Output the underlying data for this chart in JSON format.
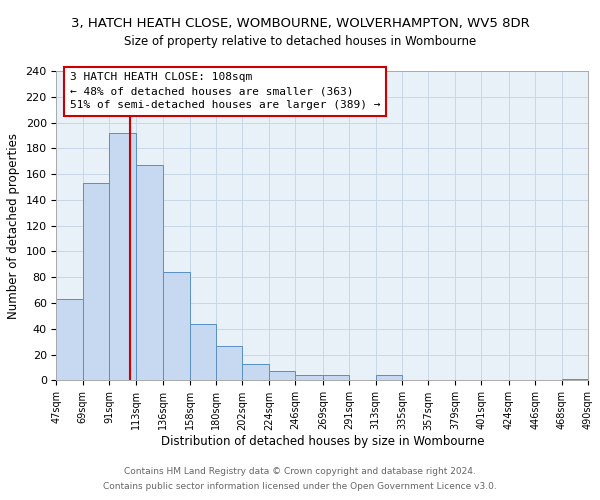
{
  "title_line1": "3, HATCH HEATH CLOSE, WOMBOURNE, WOLVERHAMPTON, WV5 8DR",
  "title_line2": "Size of property relative to detached houses in Wombourne",
  "xlabel": "Distribution of detached houses by size in Wombourne",
  "ylabel": "Number of detached properties",
  "bar_left_edges": [
    47,
    69,
    91,
    113,
    136,
    158,
    180,
    202,
    224,
    246,
    269,
    291,
    313,
    335,
    357,
    379,
    401,
    424,
    446,
    468
  ],
  "bar_heights": [
    63,
    153,
    192,
    167,
    84,
    44,
    27,
    13,
    7,
    4,
    4,
    0,
    4,
    0,
    0,
    0,
    0,
    0,
    0,
    1
  ],
  "bar_widths": [
    22,
    22,
    22,
    23,
    22,
    22,
    22,
    22,
    22,
    23,
    22,
    22,
    22,
    22,
    22,
    22,
    23,
    22,
    22,
    22
  ],
  "bar_color": "#c6d9f0",
  "bar_edge_color": "#5a8fc3",
  "property_line_x": 108,
  "annotation_box_text": "3 HATCH HEATH CLOSE: 108sqm\n← 48% of detached houses are smaller (363)\n51% of semi-detached houses are larger (389) →",
  "vline_color": "#cc0000",
  "annotation_box_edge_color": "#cc0000",
  "xlim": [
    47,
    490
  ],
  "ylim": [
    0,
    240
  ],
  "yticks": [
    0,
    20,
    40,
    60,
    80,
    100,
    120,
    140,
    160,
    180,
    200,
    220,
    240
  ],
  "xtick_labels": [
    "47sqm",
    "69sqm",
    "91sqm",
    "113sqm",
    "136sqm",
    "158sqm",
    "180sqm",
    "202sqm",
    "224sqm",
    "246sqm",
    "269sqm",
    "291sqm",
    "313sqm",
    "335sqm",
    "357sqm",
    "379sqm",
    "401sqm",
    "424sqm",
    "446sqm",
    "468sqm",
    "490sqm"
  ],
  "xtick_positions": [
    47,
    69,
    91,
    113,
    136,
    158,
    180,
    202,
    224,
    246,
    269,
    291,
    313,
    335,
    357,
    379,
    401,
    424,
    446,
    468,
    490
  ],
  "grid_color": "#c8d8e8",
  "footer_line1": "Contains HM Land Registry data © Crown copyright and database right 2024.",
  "footer_line2": "Contains public sector information licensed under the Open Government Licence v3.0.",
  "bg_color": "#ffffff",
  "plot_bg_color": "#e8f0f8",
  "title_fontsize": 9.5,
  "subtitle_fontsize": 8.5,
  "ylabel_fontsize": 8.5,
  "xlabel_fontsize": 8.5,
  "ytick_fontsize": 8,
  "xtick_fontsize": 7,
  "annotation_fontsize": 8,
  "footer_fontsize": 6.5
}
